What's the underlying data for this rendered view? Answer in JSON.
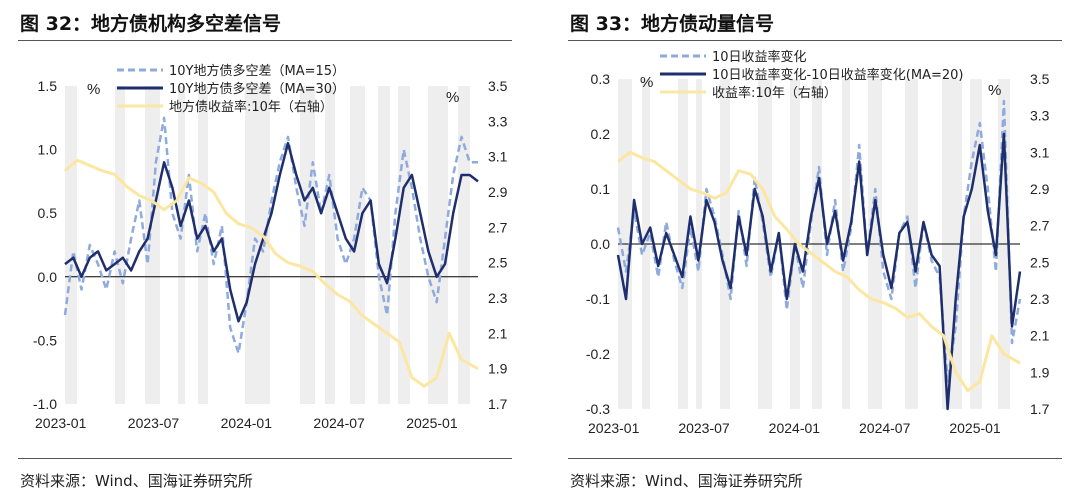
{
  "left": {
    "title": "图 32：地方债机构多空差信号",
    "source": "资料来源：Wind、国海证券研究所",
    "chart_data": {
      "type": "line",
      "left_axis": {
        "label": "%",
        "ylim": [
          -1.0,
          1.5
        ],
        "ticks": [
          "1.5",
          "1.0",
          "0.5",
          "0.0",
          "-0.5",
          "-1.0"
        ]
      },
      "right_axis": {
        "label": "%",
        "ylim": [
          1.7,
          3.5
        ],
        "ticks": [
          "3.5",
          "3.3",
          "3.1",
          "2.9",
          "2.7",
          "2.5",
          "2.3",
          "2.1",
          "1.9",
          "1.7"
        ]
      },
      "x_ticks": [
        "2023-01",
        "2023-07",
        "2024-01",
        "2024-07",
        "2025-01"
      ],
      "shading": "vertical bars marking signal periods",
      "series": [
        {
          "name": "10Y地方债多空差（MA=15）",
          "axis": "left",
          "style": "dashed",
          "color": "#8faadc",
          "x": [
            0,
            0.02,
            0.04,
            0.06,
            0.08,
            0.1,
            0.12,
            0.14,
            0.16,
            0.18,
            0.2,
            0.22,
            0.24,
            0.26,
            0.28,
            0.3,
            0.32,
            0.34,
            0.36,
            0.38,
            0.4,
            0.42,
            0.44,
            0.46,
            0.48,
            0.5,
            0.52,
            0.54,
            0.56,
            0.58,
            0.6,
            0.62,
            0.64,
            0.66,
            0.68,
            0.7,
            0.72,
            0.74,
            0.76,
            0.78,
            0.8,
            0.82,
            0.84,
            0.86,
            0.88,
            0.9,
            0.92,
            0.94,
            0.96,
            0.98,
            1.0
          ],
          "values": [
            -0.3,
            0.2,
            -0.1,
            0.25,
            0.1,
            -0.1,
            0.2,
            -0.05,
            0.3,
            0.6,
            0.1,
            0.9,
            1.25,
            0.5,
            0.3,
            0.8,
            0.2,
            0.5,
            0.1,
            0.4,
            -0.4,
            -0.6,
            -0.2,
            0.3,
            0.2,
            0.6,
            0.9,
            1.1,
            0.7,
            0.4,
            0.9,
            0.5,
            0.8,
            0.3,
            0.1,
            0.3,
            0.7,
            0.6,
            0.0,
            -0.3,
            0.5,
            1.0,
            0.7,
            0.3,
            0.0,
            -0.2,
            0.3,
            0.8,
            1.1,
            0.9,
            0.9
          ]
        },
        {
          "name": "10Y地方债多空差（MA=30）",
          "axis": "left",
          "style": "solid",
          "color": "#1f2f6e",
          "x": [
            0,
            0.02,
            0.04,
            0.06,
            0.08,
            0.1,
            0.12,
            0.14,
            0.16,
            0.18,
            0.2,
            0.22,
            0.24,
            0.26,
            0.28,
            0.3,
            0.32,
            0.34,
            0.36,
            0.38,
            0.4,
            0.42,
            0.44,
            0.46,
            0.48,
            0.5,
            0.52,
            0.54,
            0.56,
            0.58,
            0.6,
            0.62,
            0.64,
            0.66,
            0.68,
            0.7,
            0.72,
            0.74,
            0.76,
            0.78,
            0.8,
            0.82,
            0.84,
            0.86,
            0.88,
            0.9,
            0.92,
            0.94,
            0.96,
            0.98,
            1.0
          ],
          "values": [
            0.1,
            0.15,
            0.0,
            0.15,
            0.2,
            0.05,
            0.1,
            0.15,
            0.05,
            0.2,
            0.3,
            0.6,
            0.9,
            0.7,
            0.4,
            0.6,
            0.3,
            0.4,
            0.2,
            0.3,
            -0.1,
            -0.35,
            -0.2,
            0.1,
            0.3,
            0.5,
            0.8,
            1.05,
            0.8,
            0.6,
            0.7,
            0.5,
            0.7,
            0.5,
            0.3,
            0.2,
            0.5,
            0.6,
            0.1,
            -0.05,
            0.3,
            0.7,
            0.8,
            0.5,
            0.2,
            0.0,
            0.1,
            0.5,
            0.8,
            0.8,
            0.75
          ]
        },
        {
          "name": "地方债收益率:10年（右轴）",
          "axis": "right",
          "style": "solid",
          "color": "#fbe7a1",
          "x": [
            0,
            0.03,
            0.06,
            0.09,
            0.12,
            0.15,
            0.18,
            0.21,
            0.24,
            0.27,
            0.3,
            0.33,
            0.36,
            0.39,
            0.42,
            0.45,
            0.48,
            0.51,
            0.54,
            0.57,
            0.6,
            0.63,
            0.66,
            0.69,
            0.72,
            0.75,
            0.78,
            0.81,
            0.84,
            0.87,
            0.9,
            0.93,
            0.96,
            1.0
          ],
          "values": [
            3.02,
            3.08,
            3.05,
            3.02,
            3.0,
            2.93,
            2.88,
            2.85,
            2.8,
            2.85,
            2.98,
            2.95,
            2.9,
            2.78,
            2.72,
            2.7,
            2.65,
            2.55,
            2.5,
            2.48,
            2.45,
            2.38,
            2.32,
            2.28,
            2.2,
            2.15,
            2.1,
            2.05,
            1.85,
            1.8,
            1.85,
            2.1,
            1.95,
            1.9
          ]
        }
      ]
    }
  },
  "right": {
    "title": "图 33：地方债动量信号",
    "source": "资料来源：Wind、国海证券研究所",
    "chart_data": {
      "type": "line",
      "left_axis": {
        "label": "%",
        "ylim": [
          -0.3,
          0.3
        ],
        "ticks": [
          "0.3",
          "0.2",
          "0.1",
          "0.0",
          "-0.1",
          "-0.2",
          "-0.3"
        ]
      },
      "right_axis": {
        "label": "%",
        "ylim": [
          1.7,
          3.5
        ],
        "ticks": [
          "3.5",
          "3.3",
          "3.1",
          "2.9",
          "2.7",
          "2.5",
          "2.3",
          "2.1",
          "1.9",
          "1.7"
        ]
      },
      "x_ticks": [
        "2023-01",
        "2023-07",
        "2024-01",
        "2024-07",
        "2025-01"
      ],
      "shading": "vertical bars marking signal periods",
      "series": [
        {
          "name": "10日收益率变化",
          "axis": "left",
          "style": "dashed",
          "color": "#8faadc",
          "x": [
            0,
            0.02,
            0.04,
            0.06,
            0.08,
            0.1,
            0.12,
            0.14,
            0.16,
            0.18,
            0.2,
            0.22,
            0.24,
            0.26,
            0.28,
            0.3,
            0.32,
            0.34,
            0.36,
            0.38,
            0.4,
            0.42,
            0.44,
            0.46,
            0.48,
            0.5,
            0.52,
            0.54,
            0.56,
            0.58,
            0.6,
            0.62,
            0.64,
            0.66,
            0.68,
            0.7,
            0.72,
            0.74,
            0.76,
            0.78,
            0.8,
            0.82,
            0.84,
            0.86,
            0.88,
            0.9,
            0.92,
            0.94,
            0.96,
            0.98,
            1.0
          ],
          "values": [
            0.03,
            -0.05,
            0.06,
            -0.02,
            0.02,
            -0.06,
            0.04,
            -0.03,
            -0.08,
            0.03,
            -0.05,
            0.1,
            0.05,
            -0.02,
            -0.1,
            0.06,
            -0.04,
            0.12,
            0.04,
            -0.06,
            0.02,
            -0.12,
            0.0,
            -0.08,
            0.04,
            0.14,
            -0.02,
            0.08,
            -0.05,
            0.03,
            0.18,
            -0.02,
            0.1,
            -0.05,
            -0.1,
            0.02,
            0.05,
            -0.08,
            0.04,
            -0.03,
            -0.06,
            -0.25,
            -0.15,
            0.05,
            0.15,
            0.22,
            0.1,
            -0.05,
            0.26,
            -0.18,
            -0.1
          ]
        },
        {
          "name": "10日收益率变化-10日收益率变化(MA=20)",
          "axis": "left",
          "style": "solid",
          "color": "#1f2f6e",
          "x": [
            0,
            0.02,
            0.04,
            0.06,
            0.08,
            0.1,
            0.12,
            0.14,
            0.16,
            0.18,
            0.2,
            0.22,
            0.24,
            0.26,
            0.28,
            0.3,
            0.32,
            0.34,
            0.36,
            0.38,
            0.4,
            0.42,
            0.44,
            0.46,
            0.48,
            0.5,
            0.52,
            0.54,
            0.56,
            0.58,
            0.6,
            0.62,
            0.64,
            0.66,
            0.68,
            0.7,
            0.72,
            0.74,
            0.76,
            0.78,
            0.8,
            0.82,
            0.84,
            0.86,
            0.88,
            0.9,
            0.92,
            0.94,
            0.96,
            0.98,
            1.0
          ],
          "values": [
            -0.02,
            -0.1,
            0.08,
            0.0,
            0.03,
            -0.04,
            0.02,
            -0.02,
            -0.06,
            0.05,
            -0.03,
            0.08,
            0.04,
            -0.03,
            -0.08,
            0.05,
            -0.02,
            0.1,
            0.05,
            -0.05,
            0.02,
            -0.1,
            0.0,
            -0.05,
            0.05,
            0.12,
            0.0,
            0.06,
            -0.03,
            0.04,
            0.15,
            -0.02,
            0.08,
            -0.02,
            -0.08,
            0.02,
            0.04,
            -0.05,
            0.04,
            -0.02,
            -0.04,
            -0.3,
            -0.1,
            0.05,
            0.1,
            0.18,
            0.06,
            -0.02,
            0.2,
            -0.15,
            -0.05
          ]
        },
        {
          "name": "收益率:10年（右轴）",
          "axis": "right",
          "style": "solid",
          "color": "#fbe7a1",
          "x": [
            0,
            0.03,
            0.06,
            0.09,
            0.12,
            0.15,
            0.18,
            0.21,
            0.24,
            0.27,
            0.3,
            0.33,
            0.36,
            0.39,
            0.42,
            0.45,
            0.48,
            0.51,
            0.54,
            0.57,
            0.6,
            0.63,
            0.66,
            0.69,
            0.72,
            0.75,
            0.78,
            0.81,
            0.84,
            0.87,
            0.9,
            0.93,
            0.96,
            1.0
          ],
          "values": [
            3.05,
            3.1,
            3.07,
            3.05,
            3.0,
            2.95,
            2.9,
            2.88,
            2.85,
            2.88,
            3.0,
            2.98,
            2.9,
            2.75,
            2.68,
            2.6,
            2.55,
            2.5,
            2.45,
            2.42,
            2.35,
            2.3,
            2.28,
            2.25,
            2.2,
            2.22,
            2.15,
            2.1,
            1.9,
            1.8,
            1.85,
            2.1,
            2.0,
            1.95
          ]
        }
      ]
    }
  }
}
